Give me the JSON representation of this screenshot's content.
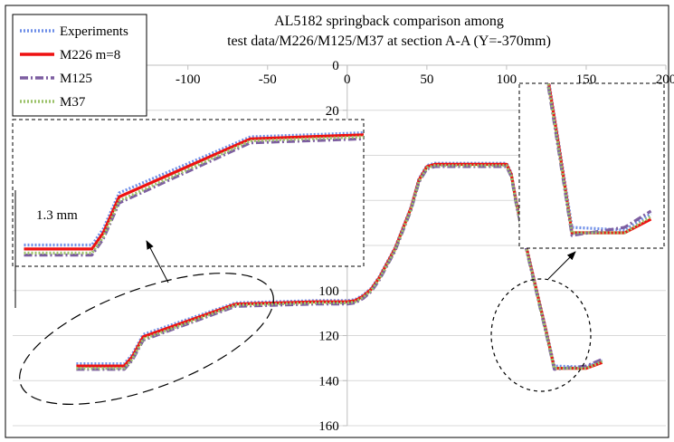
{
  "chart_data": {
    "type": "line",
    "title_lines": [
      "AL5182 springback comparison among",
      "test data/M226/M125/M37 at section A-A (Y=-370mm)"
    ],
    "xlabel": "",
    "ylabel": "",
    "xlim": [
      -210,
      200
    ],
    "ylim": [
      0,
      160
    ],
    "y_inverted": true,
    "x_axis_at_top": true,
    "x_ticks": [
      -100,
      -50,
      0,
      50,
      100,
      150,
      200
    ],
    "x_tick_labels": [
      "-100",
      "-50",
      "0",
      "50",
      "100",
      "150",
      "200"
    ],
    "y_ticks": [
      0,
      20,
      40,
      60,
      80,
      100,
      120,
      140,
      160
    ],
    "y_tick_labels": [
      "0",
      "20",
      "40",
      "60",
      "80",
      "100",
      "120",
      "140",
      "160"
    ],
    "grid": "horizontal",
    "legend_position": "top-left",
    "series": [
      {
        "name": "Experiments",
        "color": "#6f8fe8",
        "style": "dotted",
        "x": [
          -170,
          -155,
          -140,
          -135,
          -128,
          -70,
          -20,
          0,
          5,
          10,
          15,
          20,
          30,
          40,
          45,
          50,
          55,
          95,
          100,
          103,
          106,
          110,
          115,
          120,
          125,
          130,
          150,
          160
        ],
        "y": [
          132.5,
          132.5,
          132.5,
          128.5,
          119.5,
          105.5,
          104.5,
          104.5,
          104,
          102,
          99,
          94,
          81,
          63,
          50.5,
          44.5,
          43.5,
          43.5,
          43.5,
          48,
          60,
          73,
          88,
          103,
          118,
          133.5,
          134,
          131
        ]
      },
      {
        "name": "M226 m=8",
        "color": "#ee1111",
        "style": "solid",
        "x": [
          -170,
          -155,
          -140,
          -135,
          -128,
          -70,
          -20,
          0,
          5,
          10,
          15,
          20,
          30,
          40,
          45,
          50,
          55,
          95,
          100,
          103,
          106,
          110,
          115,
          120,
          125,
          130,
          150,
          160
        ],
        "y": [
          133.5,
          133.5,
          133.5,
          129.5,
          120.5,
          106,
          105,
          105,
          104.5,
          102.5,
          99.5,
          94.5,
          81.5,
          63.5,
          51,
          45,
          44,
          44,
          44,
          48.5,
          60.5,
          73.5,
          88.5,
          103.5,
          118.5,
          134.5,
          134.5,
          132
        ]
      },
      {
        "name": "M125",
        "color": "#7d5ea1",
        "style": "dashdot",
        "x": [
          -170,
          -155,
          -140,
          -135,
          -128,
          -70,
          -20,
          0,
          5,
          10,
          15,
          20,
          30,
          40,
          45,
          50,
          55,
          95,
          100,
          103,
          106,
          110,
          115,
          120,
          125,
          130,
          150,
          160
        ],
        "y": [
          135,
          135,
          135,
          131,
          122,
          107,
          106,
          106,
          105.5,
          103.5,
          100.5,
          95.5,
          82.5,
          64.5,
          52,
          46,
          45,
          45,
          45,
          49.5,
          61.5,
          74.5,
          89.5,
          104.5,
          119.5,
          135,
          133.5,
          130.5
        ]
      },
      {
        "name": "M37",
        "color": "#9cc26a",
        "style": "dotted",
        "x": [
          -170,
          -155,
          -140,
          -135,
          -128,
          -70,
          -20,
          0,
          5,
          10,
          15,
          20,
          30,
          40,
          45,
          50,
          55,
          95,
          100,
          103,
          106,
          110,
          115,
          120,
          125,
          130,
          150,
          160
        ],
        "y": [
          134.5,
          134.5,
          134.5,
          130.5,
          121.5,
          106.5,
          105.5,
          105.5,
          105,
          103,
          100,
          95,
          82,
          64,
          51.5,
          45.5,
          44.5,
          44.5,
          44.5,
          49,
          61,
          74,
          89,
          104,
          119,
          134.5,
          134.5,
          131.5
        ]
      }
    ],
    "annotations": [
      {
        "text": "1.3 mm"
      }
    ]
  }
}
